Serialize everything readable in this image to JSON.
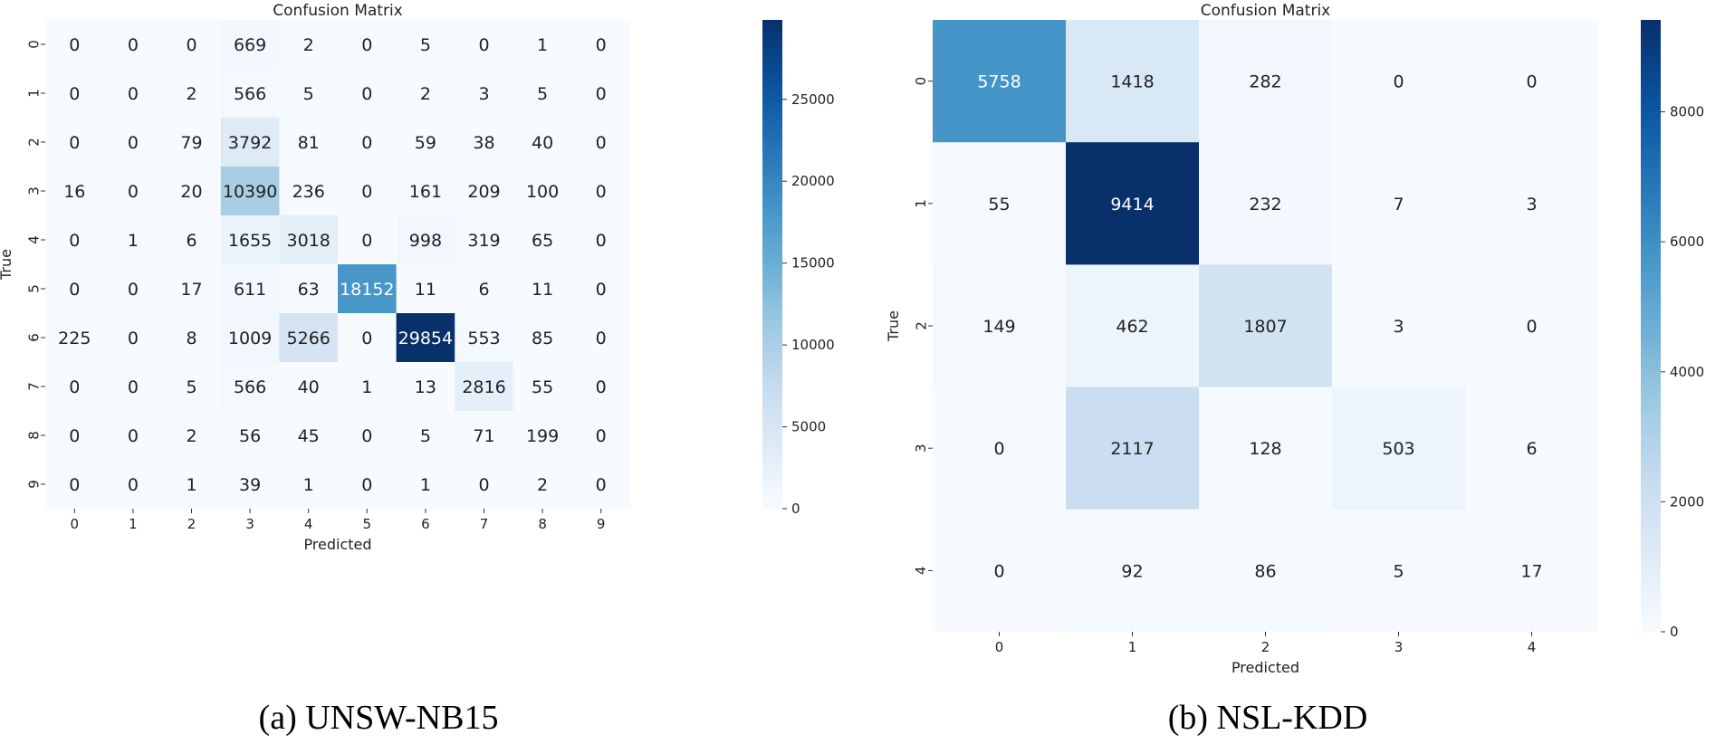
{
  "chart_data": [
    {
      "type": "heatmap",
      "title": "Confusion Matrix",
      "caption": "(a) UNSW-NB15",
      "xlabel": "Predicted",
      "ylabel": "True",
      "x_categories": [
        "0",
        "1",
        "2",
        "3",
        "4",
        "5",
        "6",
        "7",
        "8",
        "9"
      ],
      "y_categories": [
        "0",
        "1",
        "2",
        "3",
        "4",
        "5",
        "6",
        "7",
        "8",
        "9"
      ],
      "values": [
        [
          0,
          0,
          0,
          669,
          2,
          0,
          5,
          0,
          1,
          0
        ],
        [
          0,
          0,
          2,
          566,
          5,
          0,
          2,
          3,
          5,
          0
        ],
        [
          0,
          0,
          79,
          3792,
          81,
          0,
          59,
          38,
          40,
          0
        ],
        [
          16,
          0,
          20,
          10390,
          236,
          0,
          161,
          209,
          100,
          0
        ],
        [
          0,
          1,
          6,
          1655,
          3018,
          0,
          998,
          319,
          65,
          0
        ],
        [
          0,
          0,
          17,
          611,
          63,
          18152,
          11,
          6,
          11,
          0
        ],
        [
          225,
          0,
          8,
          1009,
          5266,
          0,
          29854,
          553,
          85,
          0
        ],
        [
          0,
          0,
          5,
          566,
          40,
          1,
          13,
          2816,
          55,
          0
        ],
        [
          0,
          0,
          2,
          56,
          45,
          0,
          5,
          71,
          199,
          0
        ],
        [
          0,
          0,
          1,
          39,
          1,
          0,
          1,
          0,
          2,
          0
        ]
      ],
      "colorbar_ticks": [
        0,
        5000,
        10000,
        15000,
        20000,
        25000
      ],
      "vmin": 0,
      "vmax": 29854,
      "colormap": "Blues"
    },
    {
      "type": "heatmap",
      "title": "Confusion Matrix",
      "caption": "(b) NSL-KDD",
      "xlabel": "Predicted",
      "ylabel": "True",
      "x_categories": [
        "0",
        "1",
        "2",
        "3",
        "4"
      ],
      "y_categories": [
        "0",
        "1",
        "2",
        "3",
        "4"
      ],
      "values": [
        [
          5758,
          1418,
          282,
          0,
          0
        ],
        [
          55,
          9414,
          232,
          7,
          3
        ],
        [
          149,
          462,
          1807,
          3,
          0
        ],
        [
          0,
          2117,
          128,
          503,
          6
        ],
        [
          0,
          92,
          86,
          5,
          17
        ]
      ],
      "colorbar_ticks": [
        0,
        2000,
        4000,
        6000,
        8000
      ],
      "vmin": 0,
      "vmax": 9414,
      "colormap": "Blues"
    }
  ]
}
